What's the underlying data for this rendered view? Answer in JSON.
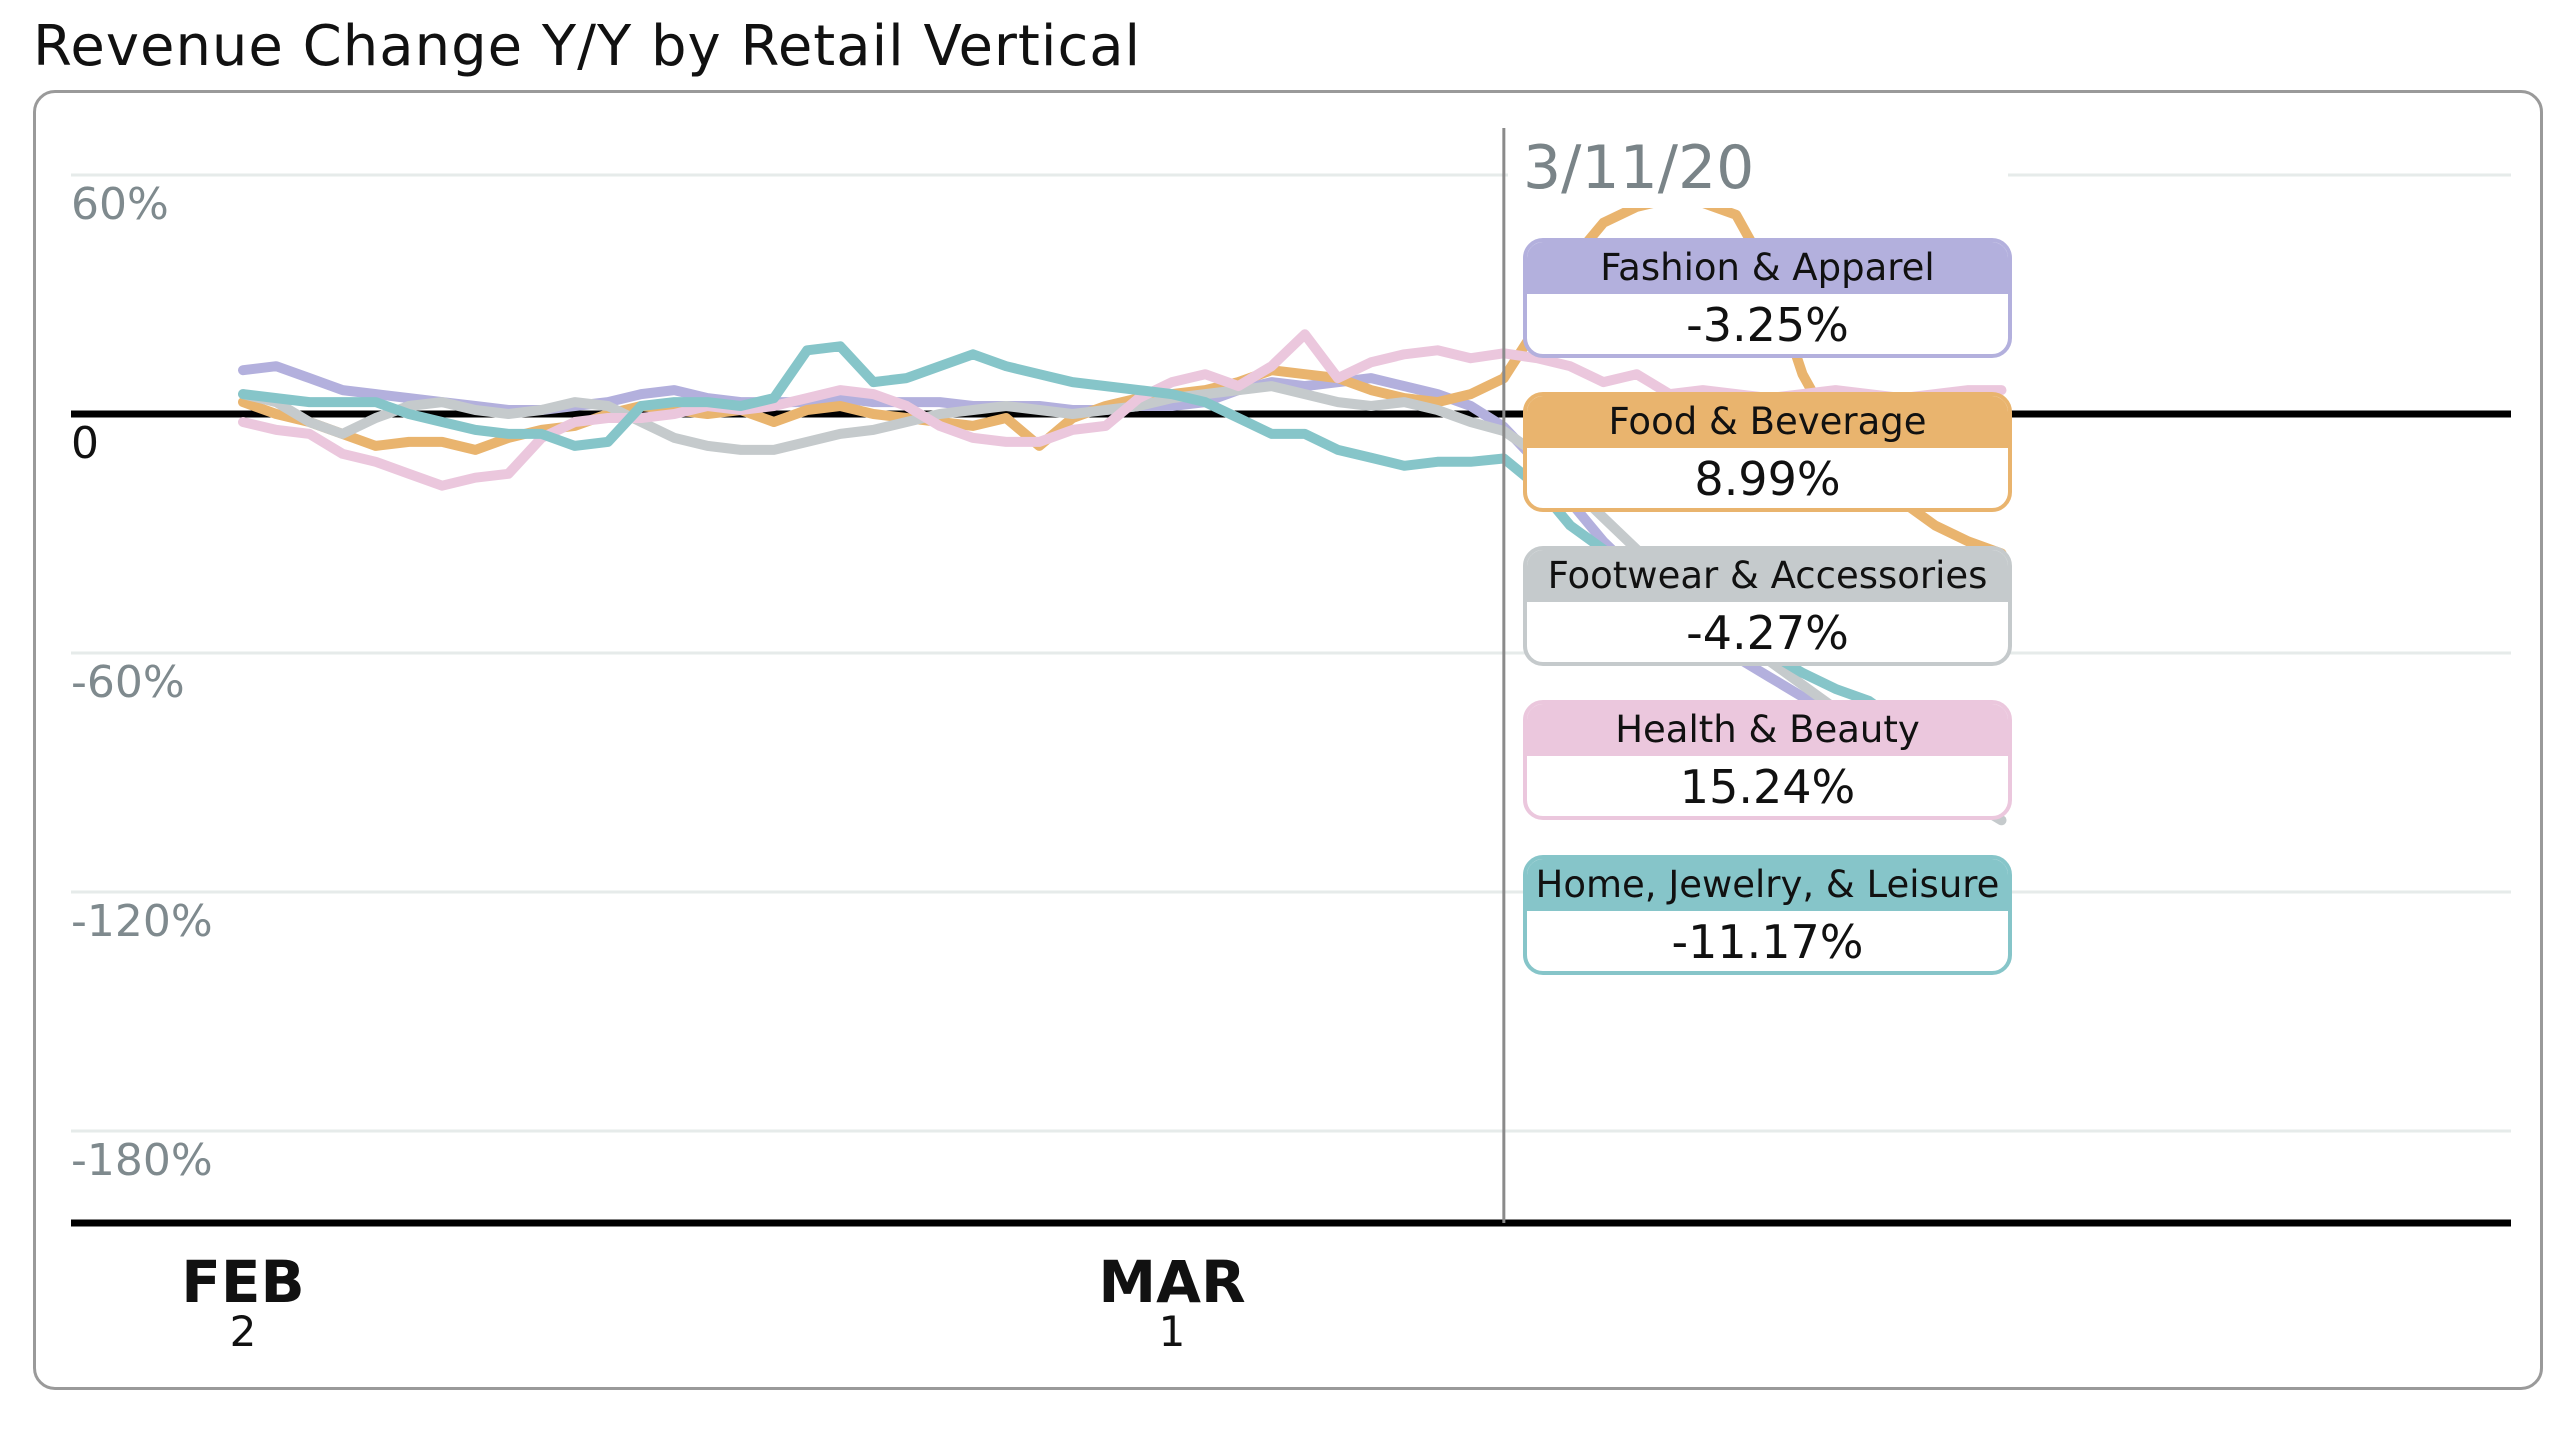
{
  "title": "Revenue Change Y/Y by Retail Vertical",
  "chart_data": {
    "type": "line",
    "title": "Revenue Change Y/Y by Retail Vertical",
    "xlabel": "",
    "ylabel": "",
    "x_unit": "days since Feb 2, 2020",
    "x_range": [
      0,
      53
    ],
    "ylim": [
      -202,
      72
    ],
    "grid": true,
    "y_ticks": [
      {
        "value": 60,
        "label": "60%"
      },
      {
        "value": 0,
        "label": "0"
      },
      {
        "value": -60,
        "label": "-60%"
      },
      {
        "value": -120,
        "label": "-120%"
      },
      {
        "value": -180,
        "label": "-180%"
      }
    ],
    "x_ticks": [
      {
        "day": 0,
        "month": "FEB",
        "date": "2"
      },
      {
        "day": 28,
        "month": "MAR",
        "date": "1"
      }
    ],
    "hover": {
      "day": 38,
      "label": "3/11/20"
    },
    "series": [
      {
        "name": "Fashion & Apparel",
        "color": "#b3b0dd",
        "hover_value": "-3.25%",
        "values": [
          11,
          12,
          9,
          6,
          5,
          4,
          3,
          2,
          1,
          1,
          2,
          3,
          5,
          6,
          4,
          3,
          3,
          3,
          4,
          3,
          3,
          3,
          2,
          2,
          2,
          1,
          1,
          2,
          2,
          3,
          6,
          8,
          7,
          8,
          9,
          7,
          5,
          2,
          -3.25,
          -12,
          -22,
          -32,
          -40,
          -48,
          -55,
          -61,
          -66,
          -71,
          -76,
          -80,
          -84,
          -88,
          -91,
          -94
        ]
      },
      {
        "name": "Food & Beverage",
        "color": "#e9b46e",
        "hover_value": "8.99%",
        "values": [
          3,
          0,
          -2,
          -5,
          -8,
          -7,
          -7,
          -9,
          -6,
          -4,
          -3,
          0,
          2,
          1,
          0,
          1,
          -2,
          1,
          2,
          0,
          -1,
          -2,
          -3,
          -1,
          -8,
          -1,
          2,
          4,
          5,
          6,
          8,
          11,
          10,
          9,
          6,
          4,
          3,
          5,
          8.99,
          22,
          38,
          48,
          52,
          54,
          53,
          50,
          35,
          10,
          -5,
          -15,
          -22,
          -28,
          -32,
          -35
        ]
      },
      {
        "name": "Footwear & Accessories",
        "color": "#c5cacc",
        "hover_value": "-4.27%",
        "values": [
          5,
          3,
          -2,
          -5,
          -1,
          2,
          3,
          1,
          0,
          1,
          3,
          2,
          -2,
          -6,
          -8,
          -9,
          -9,
          -7,
          -5,
          -4,
          -2,
          0,
          1,
          2,
          1,
          0,
          1,
          2,
          4,
          5,
          6,
          7,
          5,
          3,
          2,
          3,
          1,
          -2,
          -4.27,
          -10,
          -18,
          -26,
          -34,
          -42,
          -50,
          -56,
          -62,
          -68,
          -74,
          -80,
          -86,
          -92,
          -97,
          -102
        ]
      },
      {
        "name": "Health & Beauty",
        "color": "#ebc7dd",
        "hover_value": "15.24%",
        "values": [
          -2,
          -4,
          -5,
          -10,
          -12,
          -15,
          -18,
          -16,
          -15,
          -6,
          -2,
          -1,
          -1,
          0,
          2,
          1,
          2,
          4,
          6,
          5,
          2,
          -3,
          -6,
          -7,
          -7,
          -4,
          -3,
          4,
          8,
          10,
          7,
          12,
          20,
          9,
          13,
          15,
          16,
          14,
          15.24,
          14,
          12,
          8,
          10,
          5,
          6,
          5,
          4,
          5,
          6,
          5,
          4,
          5,
          6,
          6
        ]
      },
      {
        "name": "Home, Jewelry, & Leisure",
        "color": "#86c5c9",
        "hover_value": "-11.17%",
        "values": [
          5,
          4,
          3,
          3,
          3,
          0,
          -2,
          -4,
          -5,
          -5,
          -8,
          -7,
          2,
          3,
          3,
          2,
          4,
          16,
          17,
          8,
          9,
          12,
          15,
          12,
          10,
          8,
          7,
          6,
          5,
          3,
          -1,
          -5,
          -5,
          -9,
          -11,
          -13,
          -12,
          -12,
          -11.17,
          -18,
          -28,
          -34,
          -40,
          -45,
          -50,
          -55,
          -60,
          -65,
          -69,
          -72,
          -78,
          -85,
          -92,
          -98
        ]
      }
    ]
  }
}
